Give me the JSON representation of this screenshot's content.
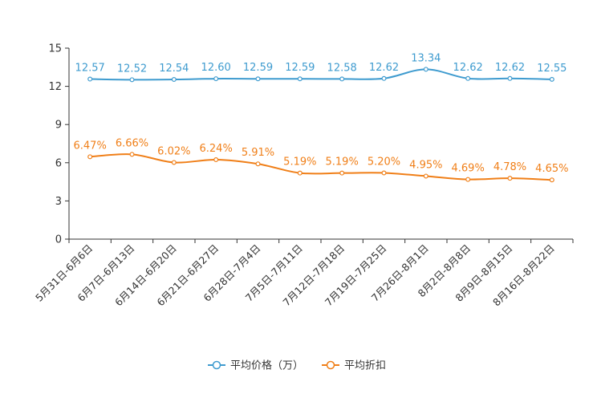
{
  "chart_data": {
    "type": "line",
    "categories": [
      "5月31日-6月6日",
      "6月7日-6月13日",
      "6月14日-6月20日",
      "6月21日-6月27日",
      "6月28日-7月4日",
      "7月5日-7月11日",
      "7月12日-7月18日",
      "7月19日-7月25日",
      "7月26日-8月1日",
      "8月2日-8月8日",
      "8月9日-8月15日",
      "8月16日-8月22日"
    ],
    "series": [
      {
        "name": "平均价格（万）",
        "color": "#3e9bcf",
        "values": [
          12.57,
          12.52,
          12.54,
          12.6,
          12.59,
          12.59,
          12.58,
          12.62,
          13.34,
          12.62,
          12.62,
          12.55
        ],
        "labels": [
          "12.57",
          "12.52",
          "12.54",
          "12.60",
          "12.59",
          "12.59",
          "12.58",
          "12.62",
          "13.34",
          "12.62",
          "12.62",
          "12.55"
        ]
      },
      {
        "name": "平均折扣",
        "color": "#f07f18",
        "values": [
          6.47,
          6.66,
          6.02,
          6.24,
          5.91,
          5.19,
          5.19,
          5.2,
          4.95,
          4.69,
          4.78,
          4.65
        ],
        "labels": [
          "6.47%",
          "6.66%",
          "6.02%",
          "6.24%",
          "5.91%",
          "5.19%",
          "5.19%",
          "5.20%",
          "4.95%",
          "4.69%",
          "4.78%",
          "4.65%"
        ]
      }
    ],
    "ylim": [
      0,
      15
    ],
    "yticks": [
      0,
      3,
      6,
      9,
      12,
      15
    ],
    "ytick_labels": [
      "0",
      "3",
      "6",
      "9",
      "12",
      "15"
    ],
    "title": "",
    "xlabel": "",
    "ylabel": "",
    "legend": "bottom-center",
    "grid": false
  }
}
